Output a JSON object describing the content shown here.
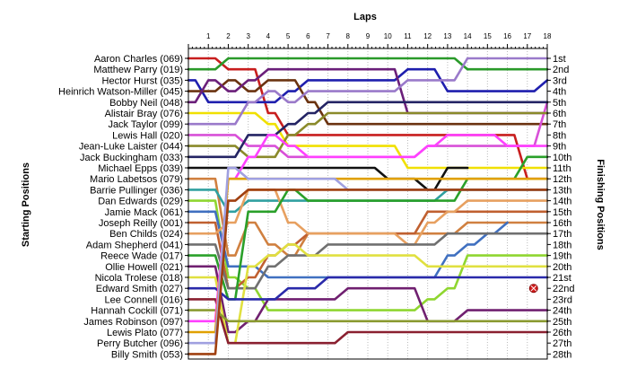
{
  "chart_data": {
    "type": "line",
    "title": "",
    "x_axis_title": "Laps",
    "y_left_title": "Starting Positions",
    "y_right_title": "Finishing Positions",
    "laps": [
      1,
      2,
      3,
      4,
      5,
      6,
      7,
      8,
      9,
      10,
      11,
      12,
      13,
      14,
      15,
      16,
      17,
      18
    ],
    "starting_positions": [
      "Aaron Charles (069)",
      "Matthew Parry (019)",
      "Hector Hurst (035)",
      "Heinrich Watson-Miller (045)",
      "Bobby Neil (048)",
      "Alistair Bray (076)",
      "Jack Taylor (099)",
      "Lewis Hall (020)",
      "Jean-Luke Laister (044)",
      "Jack Buckingham (033)",
      "Michael Epps (039)",
      "Mario Labetsos (079)",
      "Barrie Pullinger (036)",
      "Dan Edwards (029)",
      "Jamie Mack (061)",
      "Joseph Reilly (001)",
      "Ben Childs (024)",
      "Adam Shepherd (041)",
      "Reece Wade (017)",
      "Ollie Howell (021)",
      "Nicola Trolese (018)",
      "Edward Smith (027)",
      "Lee Connell (016)",
      "Hannah Cockill (071)",
      "James Robinson (097)",
      "Lewis Plato (077)",
      "Perry Butcher (096)",
      "Billy Smith (053)"
    ],
    "finishing_positions": [
      "1st",
      "2nd",
      "3rd",
      "4th",
      "5th",
      "6th",
      "7th",
      "8th",
      "9th",
      "10th",
      "11th",
      "12th",
      "13th",
      "14th",
      "15th",
      "16th",
      "17th",
      "18th",
      "19th",
      "20th",
      "21st",
      "22nd",
      "23rd",
      "24th",
      "25th",
      "26th",
      "27th",
      "28th"
    ],
    "ylim": [
      1,
      28
    ],
    "xlim": [
      0,
      18
    ],
    "grid": "vertical dotted lines at each lap",
    "series": [
      {
        "color": "#c81e1e",
        "values": [
          1,
          1,
          2,
          2,
          6,
          8,
          8,
          8,
          8,
          8,
          8,
          8,
          8,
          8,
          8,
          8,
          8,
          12,
          12
        ]
      },
      {
        "color": "#2a9a2a",
        "values": [
          2,
          2,
          1,
          1,
          1,
          1,
          1,
          1,
          1,
          1,
          1,
          1,
          1,
          1,
          2,
          2,
          2,
          2,
          2
        ]
      },
      {
        "color": "#1f1fae",
        "values": [
          3,
          5,
          5,
          5,
          5,
          4,
          3,
          3,
          3,
          3,
          3,
          2,
          2,
          4,
          4,
          4,
          4,
          4,
          3
        ]
      },
      {
        "color": "#6b3310",
        "values": [
          4,
          4,
          3,
          4,
          3,
          3,
          5,
          7,
          7,
          7,
          7,
          7,
          7,
          7,
          7,
          7,
          7,
          7,
          7
        ]
      },
      {
        "color": "#6b1f7a",
        "values": [
          5,
          3,
          4,
          3,
          2,
          2,
          2,
          2,
          2,
          2,
          2,
          6,
          6,
          6,
          6,
          6,
          6,
          6,
          6
        ]
      },
      {
        "color": "#f0e000",
        "values": [
          6,
          6,
          6,
          6,
          7,
          9,
          9,
          9,
          9,
          9,
          9,
          11,
          11,
          11,
          11,
          11,
          11,
          11,
          11
        ]
      },
      {
        "color": "#9a7aca",
        "values": [
          7,
          7,
          7,
          5,
          4,
          5,
          4,
          4,
          4,
          4,
          4,
          3,
          3,
          3,
          1,
          1,
          1,
          1,
          1
        ]
      },
      {
        "color": "#d850d8",
        "values": [
          8,
          8,
          8,
          9,
          9,
          10,
          10,
          10,
          10,
          10,
          10,
          10,
          9,
          9,
          9,
          9,
          9,
          9,
          5
        ]
      },
      {
        "color": "#8a8a2a",
        "values": [
          9,
          9,
          9,
          10,
          10,
          8,
          7,
          6,
          6,
          6,
          6,
          6,
          6,
          6,
          6,
          6,
          6,
          6,
          6
        ]
      },
      {
        "color": "#242464",
        "values": [
          10,
          10,
          10,
          8,
          8,
          7,
          6,
          5,
          5,
          5,
          5,
          5,
          5,
          5,
          5,
          5,
          5,
          5,
          5
        ]
      },
      {
        "color": "#111111",
        "values": [
          11,
          11,
          11,
          11,
          11,
          11,
          11,
          11,
          11,
          11,
          12,
          12,
          13,
          11,
          11
        ]
      },
      {
        "color": "#d08040",
        "values": [
          12,
          12,
          19,
          16,
          18,
          19,
          17,
          17,
          17,
          17,
          17,
          17,
          17,
          17,
          16,
          16,
          16,
          16,
          16
        ]
      },
      {
        "color": "#30a0a0",
        "values": [
          13,
          13,
          15,
          14,
          14,
          14,
          14,
          14,
          14,
          14,
          14,
          14,
          14,
          13,
          13,
          13,
          13,
          13,
          13
        ]
      },
      {
        "color": "#8fd630",
        "values": [
          14,
          14,
          21,
          22,
          24,
          24,
          24,
          24,
          24,
          24,
          24,
          24,
          23,
          22,
          19,
          19,
          19,
          19,
          19
        ]
      },
      {
        "color": "#4070c0",
        "values": [
          15,
          15,
          20,
          20,
          21,
          21,
          21,
          21,
          21,
          21,
          21,
          21,
          21,
          19,
          18,
          17,
          16
        ]
      },
      {
        "color": "#c06030",
        "values": [
          16,
          16,
          22,
          21,
          19,
          18,
          17,
          17,
          17,
          17,
          17,
          17,
          15,
          15,
          15,
          15,
          15,
          15,
          15
        ]
      },
      {
        "color": "#e7a060",
        "values": [
          17,
          17,
          16,
          13,
          13,
          16,
          17,
          17,
          17,
          17,
          17,
          18,
          16,
          15,
          14,
          14,
          14,
          14,
          14
        ]
      },
      {
        "color": "#707070",
        "values": [
          18,
          18,
          22,
          22,
          20,
          19,
          19,
          18,
          18,
          18,
          18,
          18,
          18,
          17,
          17,
          17,
          17,
          17,
          17
        ]
      },
      {
        "color": "#2aa02a",
        "values": [
          19,
          19,
          23,
          15,
          15,
          13,
          14,
          14,
          14,
          14,
          14,
          14,
          14,
          14,
          12,
          12,
          12,
          10,
          10
        ]
      },
      {
        "color": "#702070",
        "values": [
          20,
          20,
          26,
          25,
          23,
          23,
          23,
          23,
          22,
          22,
          22,
          22,
          25,
          25,
          24,
          24,
          24,
          24,
          24
        ]
      },
      {
        "color": "#e0e040",
        "values": [
          21,
          21,
          27,
          20,
          19,
          18,
          19,
          19,
          19,
          19,
          19,
          19,
          20,
          20,
          20,
          20,
          20,
          20,
          20
        ]
      },
      {
        "color": "#2a2aaa",
        "values": [
          22,
          22,
          23,
          23,
          23,
          22,
          22,
          21,
          21,
          21,
          21,
          21,
          21,
          21,
          21,
          21,
          21,
          21,
          21
        ]
      },
      {
        "color": "#8a2030",
        "values": [
          23,
          23,
          27,
          27,
          27,
          27,
          27,
          27,
          26,
          26,
          26,
          26,
          26,
          26,
          26,
          26,
          26,
          26,
          26
        ]
      },
      {
        "color": "#8a9a30",
        "values": [
          24,
          24,
          25,
          25,
          25,
          25,
          25,
          25,
          25,
          25,
          25,
          25,
          25,
          25,
          25,
          25,
          25,
          25,
          25
        ]
      },
      {
        "color": "#ff40ff",
        "values": [
          25,
          25,
          12,
          10,
          8,
          9,
          10,
          10,
          10,
          10,
          10,
          10,
          9,
          8,
          8,
          8,
          9,
          9,
          9
        ]
      },
      {
        "color": "#e0a000",
        "values": [
          26,
          26,
          12,
          12,
          12,
          12,
          12,
          12,
          12,
          12,
          12,
          12,
          12,
          12,
          12,
          12,
          12,
          12,
          12
        ]
      },
      {
        "color": "#a0a0e0",
        "values": [
          27,
          27,
          11,
          12,
          12,
          12,
          12,
          12,
          13,
          13,
          13,
          13,
          13,
          13,
          13,
          13,
          13,
          13,
          13
        ]
      },
      {
        "color": "#a04010",
        "values": [
          28,
          28,
          14,
          13,
          13,
          13,
          13,
          13,
          13,
          13,
          13,
          13,
          13,
          13,
          13,
          13,
          13,
          13,
          13
        ]
      }
    ],
    "retirement_marker": {
      "value_position": 22,
      "after_lap": 17
    }
  }
}
